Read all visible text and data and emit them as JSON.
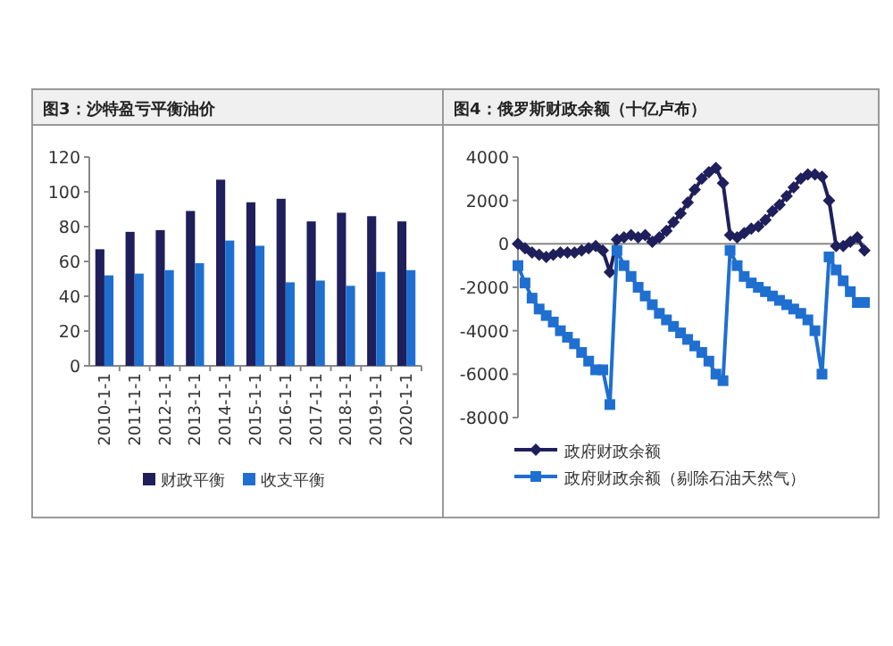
{
  "chart_data": [
    {
      "type": "bar",
      "title": "图3：沙特盈亏平衡油价",
      "categories": [
        "2010-1-1",
        "2011-1-1",
        "2012-1-1",
        "2013-1-1",
        "2014-1-1",
        "2015-1-1",
        "2016-1-1",
        "2017-1-1",
        "2018-1-1",
        "2019-1-1",
        "2020-1-1"
      ],
      "series": [
        {
          "name": "财政平衡",
          "color": "#1f1f5c",
          "values": [
            67,
            77,
            78,
            89,
            107,
            94,
            96,
            83,
            88,
            86,
            83
          ]
        },
        {
          "name": "收支平衡",
          "color": "#1f6fd0",
          "values": [
            52,
            53,
            55,
            59,
            72,
            69,
            48,
            49,
            46,
            54,
            55
          ]
        }
      ],
      "ylim": [
        0,
        120
      ],
      "yticks": [
        0,
        20,
        40,
        60,
        80,
        100,
        120
      ],
      "legend": "bottom"
    },
    {
      "type": "line",
      "title": "图4：俄罗斯财政余额（十亿卢布）",
      "categories": [
        null,
        null,
        null,
        null,
        null,
        null,
        null,
        null,
        null,
        null,
        null,
        null,
        null,
        null,
        null,
        null,
        null,
        null,
        null,
        null,
        null,
        null,
        null,
        null,
        null,
        null,
        null,
        null,
        null,
        null,
        null,
        null,
        null,
        null,
        null,
        null,
        null,
        null,
        null,
        null,
        null,
        null,
        null,
        null,
        null,
        null,
        null,
        null,
        null,
        null
      ],
      "series": [
        {
          "name": "政府财政余额",
          "color": "#1f1f5c",
          "marker": "diamond",
          "values": [
            0,
            -200,
            -400,
            -500,
            -600,
            -500,
            -400,
            -400,
            -400,
            -300,
            -200,
            -100,
            -300,
            -1300,
            200,
            300,
            400,
            300,
            400,
            100,
            300,
            600,
            1000,
            1400,
            1900,
            2500,
            3000,
            3300,
            3500,
            2800,
            400,
            300,
            500,
            700,
            800,
            1100,
            1500,
            1800,
            2200,
            2600,
            3000,
            3200,
            3200,
            3100,
            2000,
            -100,
            -100,
            100,
            300,
            -300
          ]
        },
        {
          "name": "政府财政余额（剔除石油天然气）",
          "color": "#1f6fd0",
          "marker": "square",
          "values": [
            -1000,
            -1800,
            -2500,
            -3000,
            -3300,
            -3600,
            -4000,
            -4300,
            -4600,
            -5000,
            -5400,
            -5800,
            -5800,
            -7400,
            -300,
            -1000,
            -1500,
            -2000,
            -2400,
            -2800,
            -3200,
            -3500,
            -3800,
            -4100,
            -4400,
            -4700,
            -5000,
            -5400,
            -6000,
            -6300,
            -300,
            -1000,
            -1500,
            -1800,
            -2000,
            -2200,
            -2400,
            -2600,
            -2800,
            -3000,
            -3200,
            -3500,
            -4000,
            -6000,
            -600,
            -1200,
            -1700,
            -2200,
            -2700,
            -2700
          ]
        }
      ],
      "ylim": [
        -8000,
        4000
      ],
      "yticks": [
        -8000,
        -6000,
        -4000,
        -2000,
        0,
        2000,
        4000
      ],
      "legend": "bottom left"
    }
  ]
}
